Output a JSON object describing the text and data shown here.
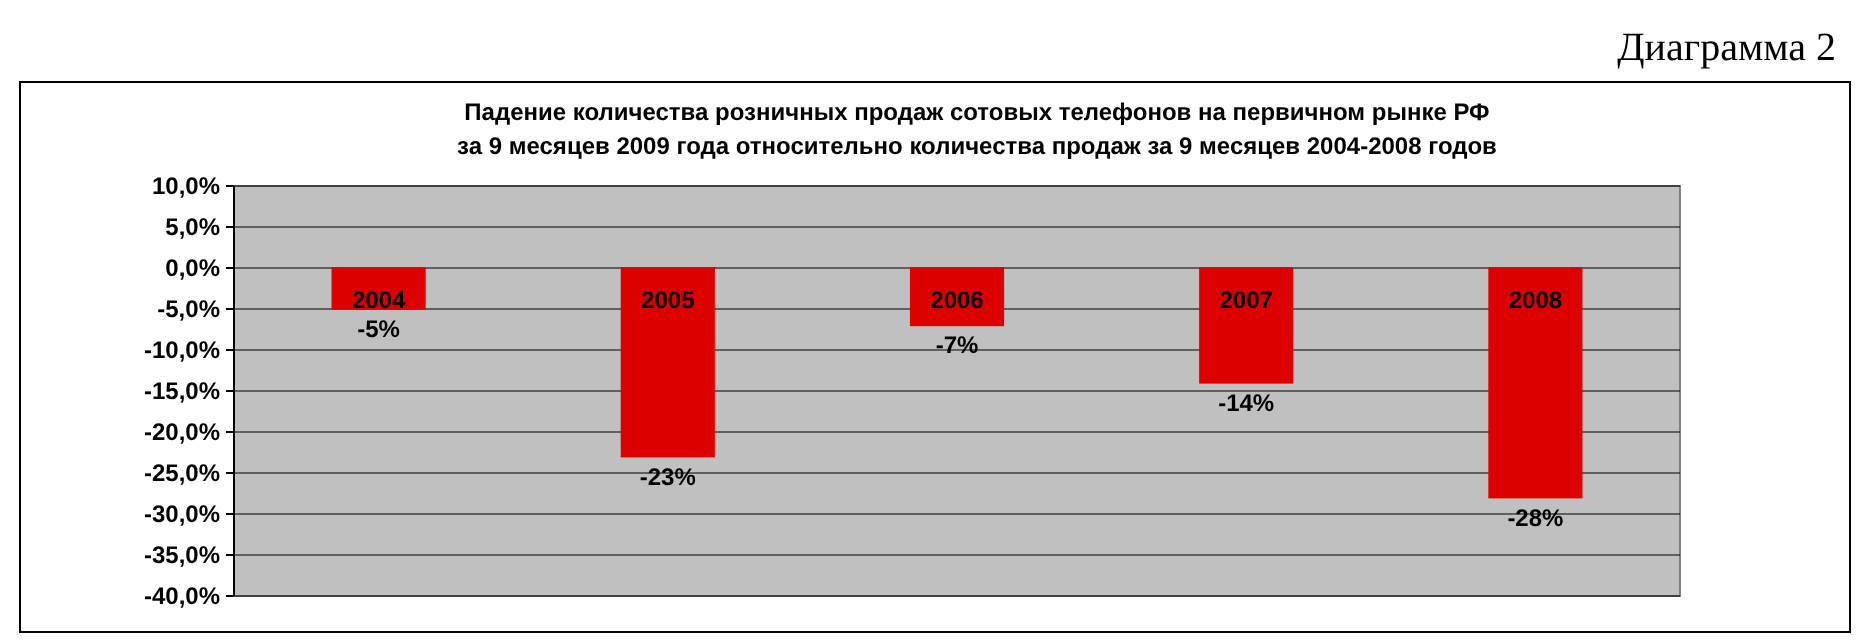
{
  "chart_data": {
    "type": "bar",
    "title": "Падение количества розничных продаж сотовых телефонов на первичном рынке РФ\nза 9 месяцев 2009 года относительно количества продаж за 9 месяцев 2004-2008 годов",
    "annotations": [
      "Диаграмма 2"
    ],
    "categories": [
      "2004",
      "2005",
      "2006",
      "2007",
      "2008"
    ],
    "values": [
      -5,
      -23,
      -7,
      -14,
      -28
    ],
    "value_labels": [
      "-5%",
      "-23%",
      "-7%",
      "-14%",
      "-28%"
    ],
    "color": "#dd0000",
    "ylim": [
      -40,
      10
    ],
    "yticks": [
      {
        "value": 10,
        "label": "10,0%"
      },
      {
        "value": 5,
        "label": "5,0%"
      },
      {
        "value": 0,
        "label": "0,0%"
      },
      {
        "value": -5,
        "label": "-5,0%"
      },
      {
        "value": -10,
        "label": "-10,0%"
      },
      {
        "value": -15,
        "label": "-15,0%"
      },
      {
        "value": -20,
        "label": "-20,0%"
      },
      {
        "value": -25,
        "label": "-25,0%"
      },
      {
        "value": -30,
        "label": "-30,0%"
      },
      {
        "value": -35,
        "label": "-35,0%"
      },
      {
        "value": -40,
        "label": "-40,0%"
      }
    ],
    "grid": "y"
  }
}
